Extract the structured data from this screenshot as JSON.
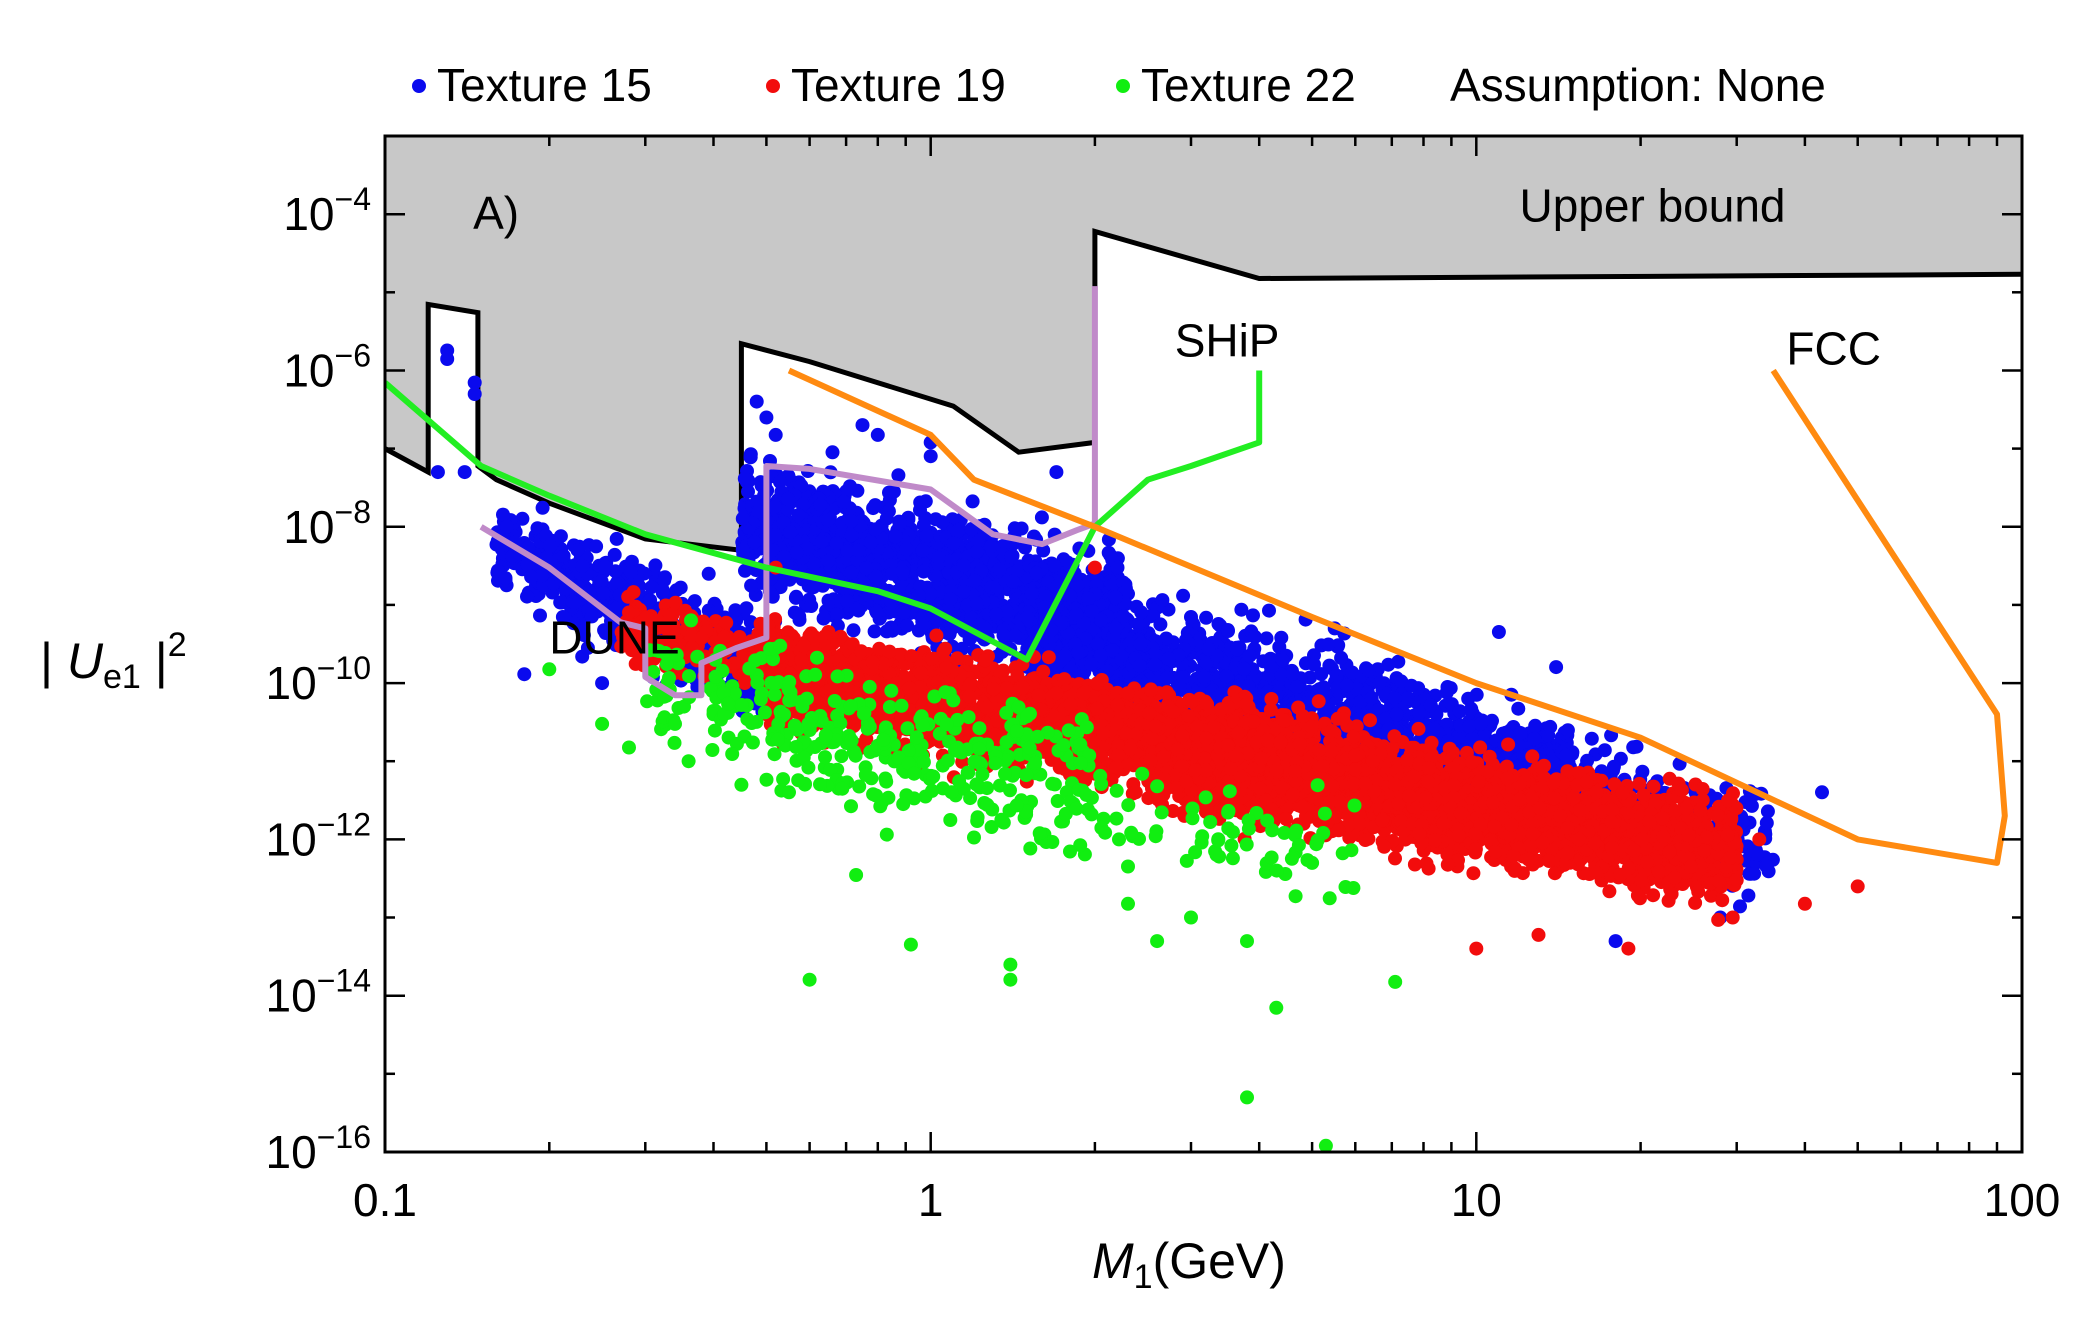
{
  "chart_data": {
    "type": "scatter",
    "panel_label": "A)",
    "legend_note": "Assumption: None",
    "xlabel": {
      "symbol": "M",
      "sub": "1",
      "unit": "(GeV)"
    },
    "ylabel": {
      "open": "| ",
      "symbol": "U",
      "sub": "e1",
      "close": " |",
      "sup": "2"
    },
    "x_scale": "log",
    "y_scale": "log",
    "xlim": [
      0.1,
      100
    ],
    "ylim": [
      1e-16,
      0.001
    ],
    "x_ticks": [
      {
        "value": 0.1,
        "label": "0.1"
      },
      {
        "value": 1,
        "label": "1"
      },
      {
        "value": 10,
        "label": "10"
      },
      {
        "value": 100,
        "label": "100"
      }
    ],
    "y_ticks": [
      {
        "value": 0.0001,
        "base": "10",
        "exp": "−4"
      },
      {
        "value": 1e-06,
        "base": "10",
        "exp": "−6"
      },
      {
        "value": 1e-08,
        "base": "10",
        "exp": "−8"
      },
      {
        "value": 1e-10,
        "base": "10",
        "exp": "−10"
      },
      {
        "value": 1e-12,
        "base": "10",
        "exp": "−12"
      },
      {
        "value": 1e-14,
        "base": "10",
        "exp": "−14"
      },
      {
        "value": 1e-16,
        "base": "10",
        "exp": "−16"
      }
    ],
    "series": [
      {
        "name": "Texture 15",
        "color": "#0a0aee",
        "cloud": [
          {
            "n": 520,
            "x": [
              0.16,
              0.5
            ],
            "y_center": [
              -8.2,
              -9.9
            ],
            "y_spread": 0.55
          },
          {
            "n": 1500,
            "x": [
              0.45,
              2.3
            ],
            "y_center": [
              -8.0,
              -9.3
            ],
            "y_spread": 0.75
          },
          {
            "n": 1300,
            "x": [
              1.5,
              15
            ],
            "y_center": [
              -9.3,
              -11.3
            ],
            "y_spread": 0.7
          },
          {
            "n": 320,
            "x": [
              8,
              35
            ],
            "y_center": [
              -10.8,
              -12.1
            ],
            "y_spread": 0.6
          }
        ],
        "points": [
          {
            "x": 0.13,
            "y": 1.8e-06
          },
          {
            "x": 0.13,
            "y": 1.4e-06
          },
          {
            "x": 0.146,
            "y": 7e-07
          },
          {
            "x": 0.146,
            "y": 5e-07
          },
          {
            "x": 0.125,
            "y": 5e-08
          },
          {
            "x": 0.14,
            "y": 5e-08
          },
          {
            "x": 0.18,
            "y": 1.3e-10
          },
          {
            "x": 0.5,
            "y": 2.5e-07
          },
          {
            "x": 0.48,
            "y": 4e-07
          },
          {
            "x": 0.52,
            "y": 1.5e-07
          },
          {
            "x": 0.75,
            "y": 2e-07
          },
          {
            "x": 0.8,
            "y": 1.5e-07
          },
          {
            "x": 1.0,
            "y": 1.2e-07
          },
          {
            "x": 1.0,
            "y": 8e-08
          },
          {
            "x": 1.7,
            "y": 5e-08
          },
          {
            "x": 2.2,
            "y": 3e-09
          },
          {
            "x": 5.5,
            "y": 5e-10
          },
          {
            "x": 11,
            "y": 4.5e-10
          },
          {
            "x": 14,
            "y": 1.6e-10
          },
          {
            "x": 43,
            "y": 4e-12
          },
          {
            "x": 28,
            "y": 1e-13
          },
          {
            "x": 18,
            "y": 5e-14
          },
          {
            "x": 3.0,
            "y": 7e-10
          },
          {
            "x": 0.25,
            "y": 1e-10
          }
        ]
      },
      {
        "name": "Texture 19",
        "color": "#f20c0c",
        "cloud": [
          {
            "n": 300,
            "x": [
              0.27,
              0.75
            ],
            "y_center": [
              -9.3,
              -9.9
            ],
            "y_spread": 0.4
          },
          {
            "n": 2000,
            "x": [
              0.5,
              4.5
            ],
            "y_center": [
              -9.9,
              -11.0
            ],
            "y_spread": 0.55
          },
          {
            "n": 2400,
            "x": [
              2.5,
              30
            ],
            "y_center": [
              -10.8,
              -12.2
            ],
            "y_spread": 0.6
          }
        ],
        "points": [
          {
            "x": 0.28,
            "y": 8e-10
          },
          {
            "x": 0.52,
            "y": 3e-09
          },
          {
            "x": 50,
            "y": 2.5e-13
          },
          {
            "x": 40,
            "y": 1.5e-13
          },
          {
            "x": 30,
            "y": 3e-13
          },
          {
            "x": 19,
            "y": 4e-14
          },
          {
            "x": 10,
            "y": 4e-14
          },
          {
            "x": 13,
            "y": 6e-14
          },
          {
            "x": 33,
            "y": 1e-12
          },
          {
            "x": 2.0,
            "y": 3e-09
          }
        ]
      },
      {
        "name": "Texture 22",
        "color": "#11ee11",
        "cloud": [
          {
            "n": 260,
            "x": [
              0.3,
              2.0
            ],
            "y_center": [
              -10.0,
              -11.0
            ],
            "y_spread": 0.65
          },
          {
            "n": 170,
            "x": [
              0.5,
              6
            ],
            "y_center": [
              -11.0,
              -12.2
            ],
            "y_spread": 0.6
          }
        ],
        "points": [
          {
            "x": 0.2,
            "y": 1.5e-10
          },
          {
            "x": 0.25,
            "y": 3e-11
          },
          {
            "x": 0.28,
            "y": 1.5e-11
          },
          {
            "x": 0.34,
            "y": 3e-11
          },
          {
            "x": 0.36,
            "y": 1e-11
          },
          {
            "x": 0.45,
            "y": 5e-12
          },
          {
            "x": 0.55,
            "y": 4e-12
          },
          {
            "x": 0.6,
            "y": 1.6e-14
          },
          {
            "x": 0.73,
            "y": 3.5e-13
          },
          {
            "x": 0.92,
            "y": 4.5e-14
          },
          {
            "x": 1.4,
            "y": 2.5e-14
          },
          {
            "x": 1.4,
            "y": 1.6e-14
          },
          {
            "x": 1.8,
            "y": 7e-13
          },
          {
            "x": 2.3,
            "y": 4.5e-13
          },
          {
            "x": 2.3,
            "y": 1.5e-13
          },
          {
            "x": 2.6,
            "y": 5e-14
          },
          {
            "x": 3.0,
            "y": 1e-13
          },
          {
            "x": 3.8,
            "y": 5e-14
          },
          {
            "x": 3.8,
            "y": 5e-16
          },
          {
            "x": 4.3,
            "y": 7e-15
          },
          {
            "x": 5.3,
            "y": 1.2e-16
          },
          {
            "x": 7.1,
            "y": 1.5e-14
          },
          {
            "x": 5.0,
            "y": 5e-13
          },
          {
            "x": 1.1,
            "y": 6e-11
          },
          {
            "x": 0.53,
            "y": 3e-10
          }
        ]
      }
    ],
    "regions": [
      {
        "name": "Upper bound",
        "label": "Upper bound",
        "label_at": {
          "x": 12,
          "y": 8e-05
        },
        "fill": "#c8c8c8",
        "stroke": "#000000",
        "boundary": [
          [
            0.1,
            1e-07
          ],
          [
            0.12,
            5e-08
          ],
          [
            0.12,
            7e-06
          ],
          [
            0.148,
            5.5e-06
          ],
          [
            0.148,
            6e-08
          ],
          [
            0.16,
            4e-08
          ],
          [
            0.2,
            2e-08
          ],
          [
            0.3,
            7e-09
          ],
          [
            0.45,
            5e-09
          ],
          [
            0.45,
            2.2e-06
          ],
          [
            0.6,
            1.3e-06
          ],
          [
            1.1,
            3.5e-07
          ],
          [
            1.45,
            9e-08
          ],
          [
            2.0,
            1.2e-07
          ],
          [
            2.0,
            6e-05
          ],
          [
            4.0,
            1.5e-05
          ],
          [
            100,
            1.7e-05
          ]
        ]
      }
    ],
    "curves": [
      {
        "name": "DUNE",
        "label": "DUNE",
        "label_at": {
          "x": 0.2,
          "y": 2.4e-10
        },
        "color": "#c08ac9",
        "points": [
          [
            0.15,
            1e-08
          ],
          [
            0.2,
            3e-09
          ],
          [
            0.27,
            6e-10
          ],
          [
            0.3,
            5e-10
          ],
          [
            0.3,
            1.2e-10
          ],
          [
            0.34,
            7e-11
          ],
          [
            0.38,
            7e-11
          ],
          [
            0.38,
            1.8e-10
          ],
          [
            0.44,
            2.8e-10
          ],
          [
            0.5,
            3.8e-10
          ],
          [
            0.5,
            6e-08
          ],
          [
            0.6,
            5.5e-08
          ],
          [
            1.0,
            3e-08
          ],
          [
            1.3,
            8e-09
          ],
          [
            1.6,
            6e-09
          ],
          [
            1.85,
            9e-09
          ],
          [
            2.0,
            1.1e-08
          ],
          [
            2.0,
            1.2e-05
          ]
        ]
      },
      {
        "name": "SHiP",
        "label": "SHiP",
        "label_at": {
          "x": 2.8,
          "y": 1.5e-06
        },
        "color": "#22ee22",
        "points": [
          [
            0.1,
            7e-07
          ],
          [
            0.15,
            6e-08
          ],
          [
            0.2,
            2.5e-08
          ],
          [
            0.3,
            8e-09
          ],
          [
            0.5,
            3e-09
          ],
          [
            0.8,
            1.5e-09
          ],
          [
            1.0,
            9e-10
          ],
          [
            1.5,
            2e-10
          ],
          [
            2.0,
            1e-08
          ],
          [
            2.5,
            4e-08
          ],
          [
            3.0,
            6e-08
          ],
          [
            4.0,
            1.2e-07
          ],
          [
            4.0,
            1e-06
          ]
        ]
      },
      {
        "name": "FCC",
        "label": "FCC",
        "label_at": {
          "x": 37,
          "y": 1.2e-06
        },
        "color": "#ff8a10",
        "points": [
          [
            0.55,
            1e-06
          ],
          [
            1.0,
            1.5e-07
          ],
          [
            1.2,
            4e-08
          ],
          [
            2.0,
            1e-08
          ],
          [
            5.0,
            7e-10
          ],
          [
            10,
            1e-10
          ],
          [
            20,
            2e-11
          ],
          [
            50,
            1e-12
          ],
          [
            90,
            5e-13
          ],
          [
            93,
            2e-12
          ],
          [
            90,
            4e-11
          ],
          [
            35,
            1e-06
          ]
        ]
      }
    ]
  }
}
